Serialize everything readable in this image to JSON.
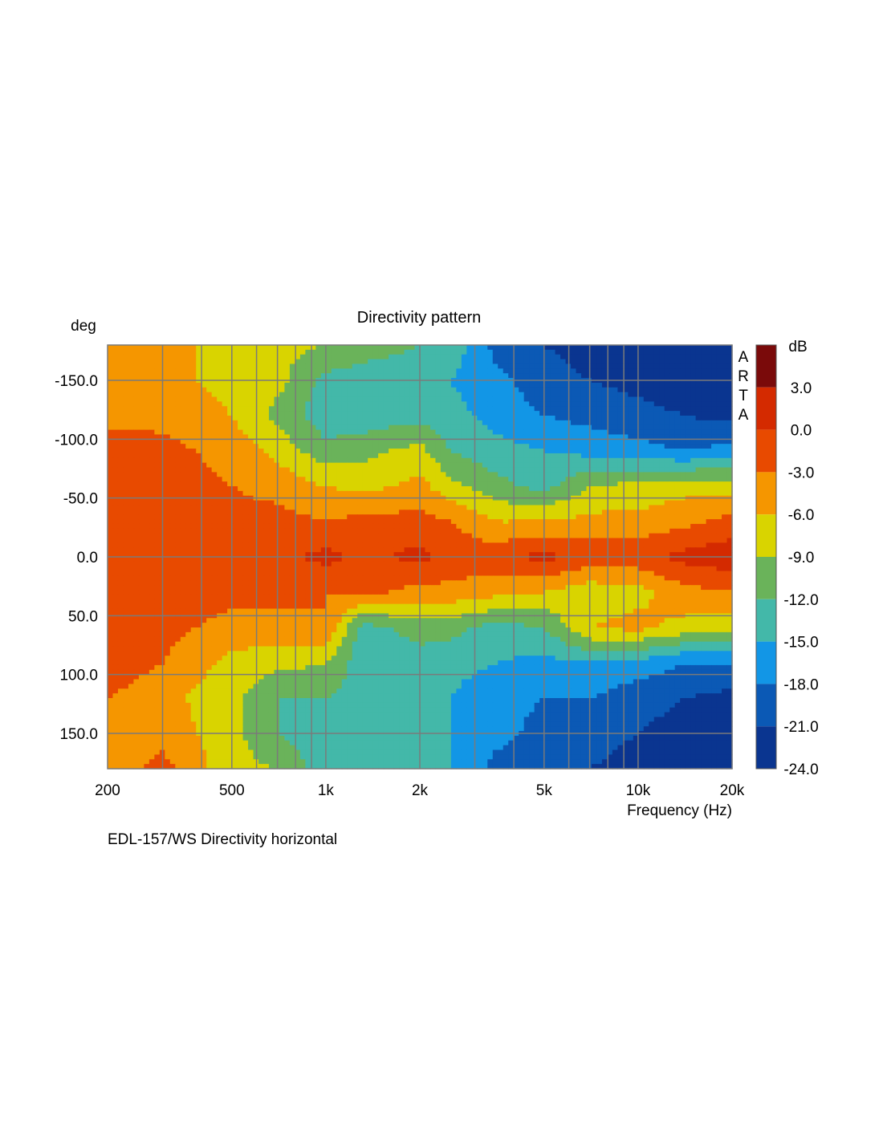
{
  "chart_data": {
    "type": "heatmap",
    "title": "Directivity pattern",
    "xlabel": "Frequency (Hz)",
    "ylabel": "deg",
    "x_scale": "log",
    "xlim": [
      200,
      20000
    ],
    "ylim": [
      -180,
      180
    ],
    "x_ticks": [
      {
        "value": 200,
        "label": "200"
      },
      {
        "value": 500,
        "label": "500"
      },
      {
        "value": 1000,
        "label": "1k"
      },
      {
        "value": 2000,
        "label": "2k"
      },
      {
        "value": 5000,
        "label": "5k"
      },
      {
        "value": 10000,
        "label": "10k"
      },
      {
        "value": 20000,
        "label": "20k"
      }
    ],
    "y_ticks": [
      {
        "value": -150,
        "label": "-150.0"
      },
      {
        "value": -100,
        "label": "-100.0"
      },
      {
        "value": -50,
        "label": "-50.0"
      },
      {
        "value": 0,
        "label": "0.0"
      },
      {
        "value": 50,
        "label": "50.0"
      },
      {
        "value": 100,
        "label": "100.0"
      },
      {
        "value": 150,
        "label": "150.0"
      }
    ],
    "grid": true,
    "colorbar": {
      "unit": "dB",
      "range": [
        -24,
        6
      ],
      "labels": [
        "3.0",
        "0.0",
        "-3.0",
        "-6.0",
        "-9.0",
        "-12.0",
        "-15.0",
        "-18.0",
        "-21.0",
        "-24.0"
      ],
      "bands": [
        {
          "from": 3,
          "to": 6,
          "color": "#7a0a0a"
        },
        {
          "from": 0,
          "to": 3,
          "color": "#d42a00"
        },
        {
          "from": -3,
          "to": 0,
          "color": "#e84a00"
        },
        {
          "from": -6,
          "to": -3,
          "color": "#f59600"
        },
        {
          "from": -9,
          "to": -6,
          "color": "#d9d400"
        },
        {
          "from": -12,
          "to": -9,
          "color": "#6ab35a"
        },
        {
          "from": -15,
          "to": -12,
          "color": "#43b8a9"
        },
        {
          "from": -18,
          "to": -15,
          "color": "#1296e6"
        },
        {
          "from": -21,
          "to": -18,
          "color": "#0b59b5"
        },
        {
          "from": -24,
          "to": -21,
          "color": "#0a3590"
        }
      ]
    },
    "frequencies": [
      200,
      300,
      500,
      700,
      1000,
      1300,
      2000,
      2500,
      3500,
      5000,
      7000,
      10000,
      14000,
      20000
    ],
    "angles": [
      -180,
      -150,
      -120,
      -90,
      -60,
      -30,
      0,
      30,
      60,
      90,
      120,
      150,
      180
    ],
    "levels_db": [
      [
        -5,
        -5,
        -7,
        -8,
        -9,
        -11,
        -12,
        -13,
        -19,
        -21,
        -22,
        -22,
        -23,
        -23
      ],
      [
        -5,
        -5,
        -7,
        -8,
        -13,
        -13,
        -13,
        -15,
        -17,
        -20,
        -21,
        -22,
        -23,
        -23
      ],
      [
        -4,
        -4,
        -6,
        -10,
        -14,
        -14,
        -13,
        -14,
        -16,
        -18,
        -19,
        -20,
        -21,
        -22
      ],
      [
        -1,
        -2,
        -4,
        -7,
        -11,
        -10,
        -8,
        -12,
        -14,
        -15,
        -16,
        -17,
        -18,
        -17
      ],
      [
        -1,
        -2,
        -3,
        -4,
        -6,
        -7,
        -5,
        -8,
        -11,
        -13,
        -9,
        -8,
        -7,
        -7
      ],
      [
        -1,
        -1,
        -2,
        -2,
        -3,
        -2,
        -2,
        -3,
        -6,
        -6,
        -5,
        -5,
        -4,
        -2
      ],
      [
        -1,
        -1,
        -1,
        -1,
        1,
        -1,
        1,
        -1,
        -1,
        1,
        -1,
        -1,
        1,
        2
      ],
      [
        -1,
        -1,
        -2,
        -2,
        -3,
        -2,
        -4,
        -4,
        -5,
        -6,
        -8,
        -7,
        -4,
        -3
      ],
      [
        -1,
        -2,
        -4,
        -4,
        -3,
        -13,
        -11,
        -11,
        -13,
        -12,
        -6,
        -5,
        -7,
        -8
      ],
      [
        -1,
        -3,
        -7,
        -8,
        -9,
        -14,
        -13,
        -14,
        -15,
        -16,
        -15,
        -16,
        -18,
        -18
      ],
      [
        -3,
        -5,
        -8,
        -12,
        -12,
        -13,
        -14,
        -15,
        -17,
        -18,
        -18,
        -20,
        -21,
        -22
      ],
      [
        -5,
        -4,
        -8,
        -12,
        -14,
        -15,
        -14,
        -15,
        -17,
        -19,
        -20,
        -21,
        -22,
        -23
      ],
      [
        -5,
        -2,
        -8,
        -9,
        -14,
        -14,
        -13,
        -15,
        -19,
        -20,
        -21,
        -22,
        -23,
        -23
      ]
    ],
    "watermark": "ARTA",
    "caption": "EDL-157/WS Directivity horizontal"
  }
}
